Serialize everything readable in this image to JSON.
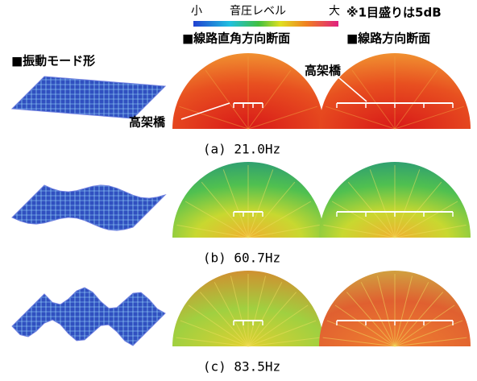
{
  "colorbar": {
    "min_label": "小",
    "title": "音圧レベル",
    "max_label": "大"
  },
  "note": "※1目盛りは5dB",
  "column_headers": [
    "■線路直角方向断面",
    "■線路方向断面"
  ],
  "row_header": "■振動モード形",
  "callouts": [
    "高架橋",
    "高架橋"
  ],
  "rows": [
    {
      "caption": "(a) 21.0Hz"
    },
    {
      "caption": "(b) 60.7Hz"
    },
    {
      "caption": "(c) 83.5Hz"
    }
  ]
}
